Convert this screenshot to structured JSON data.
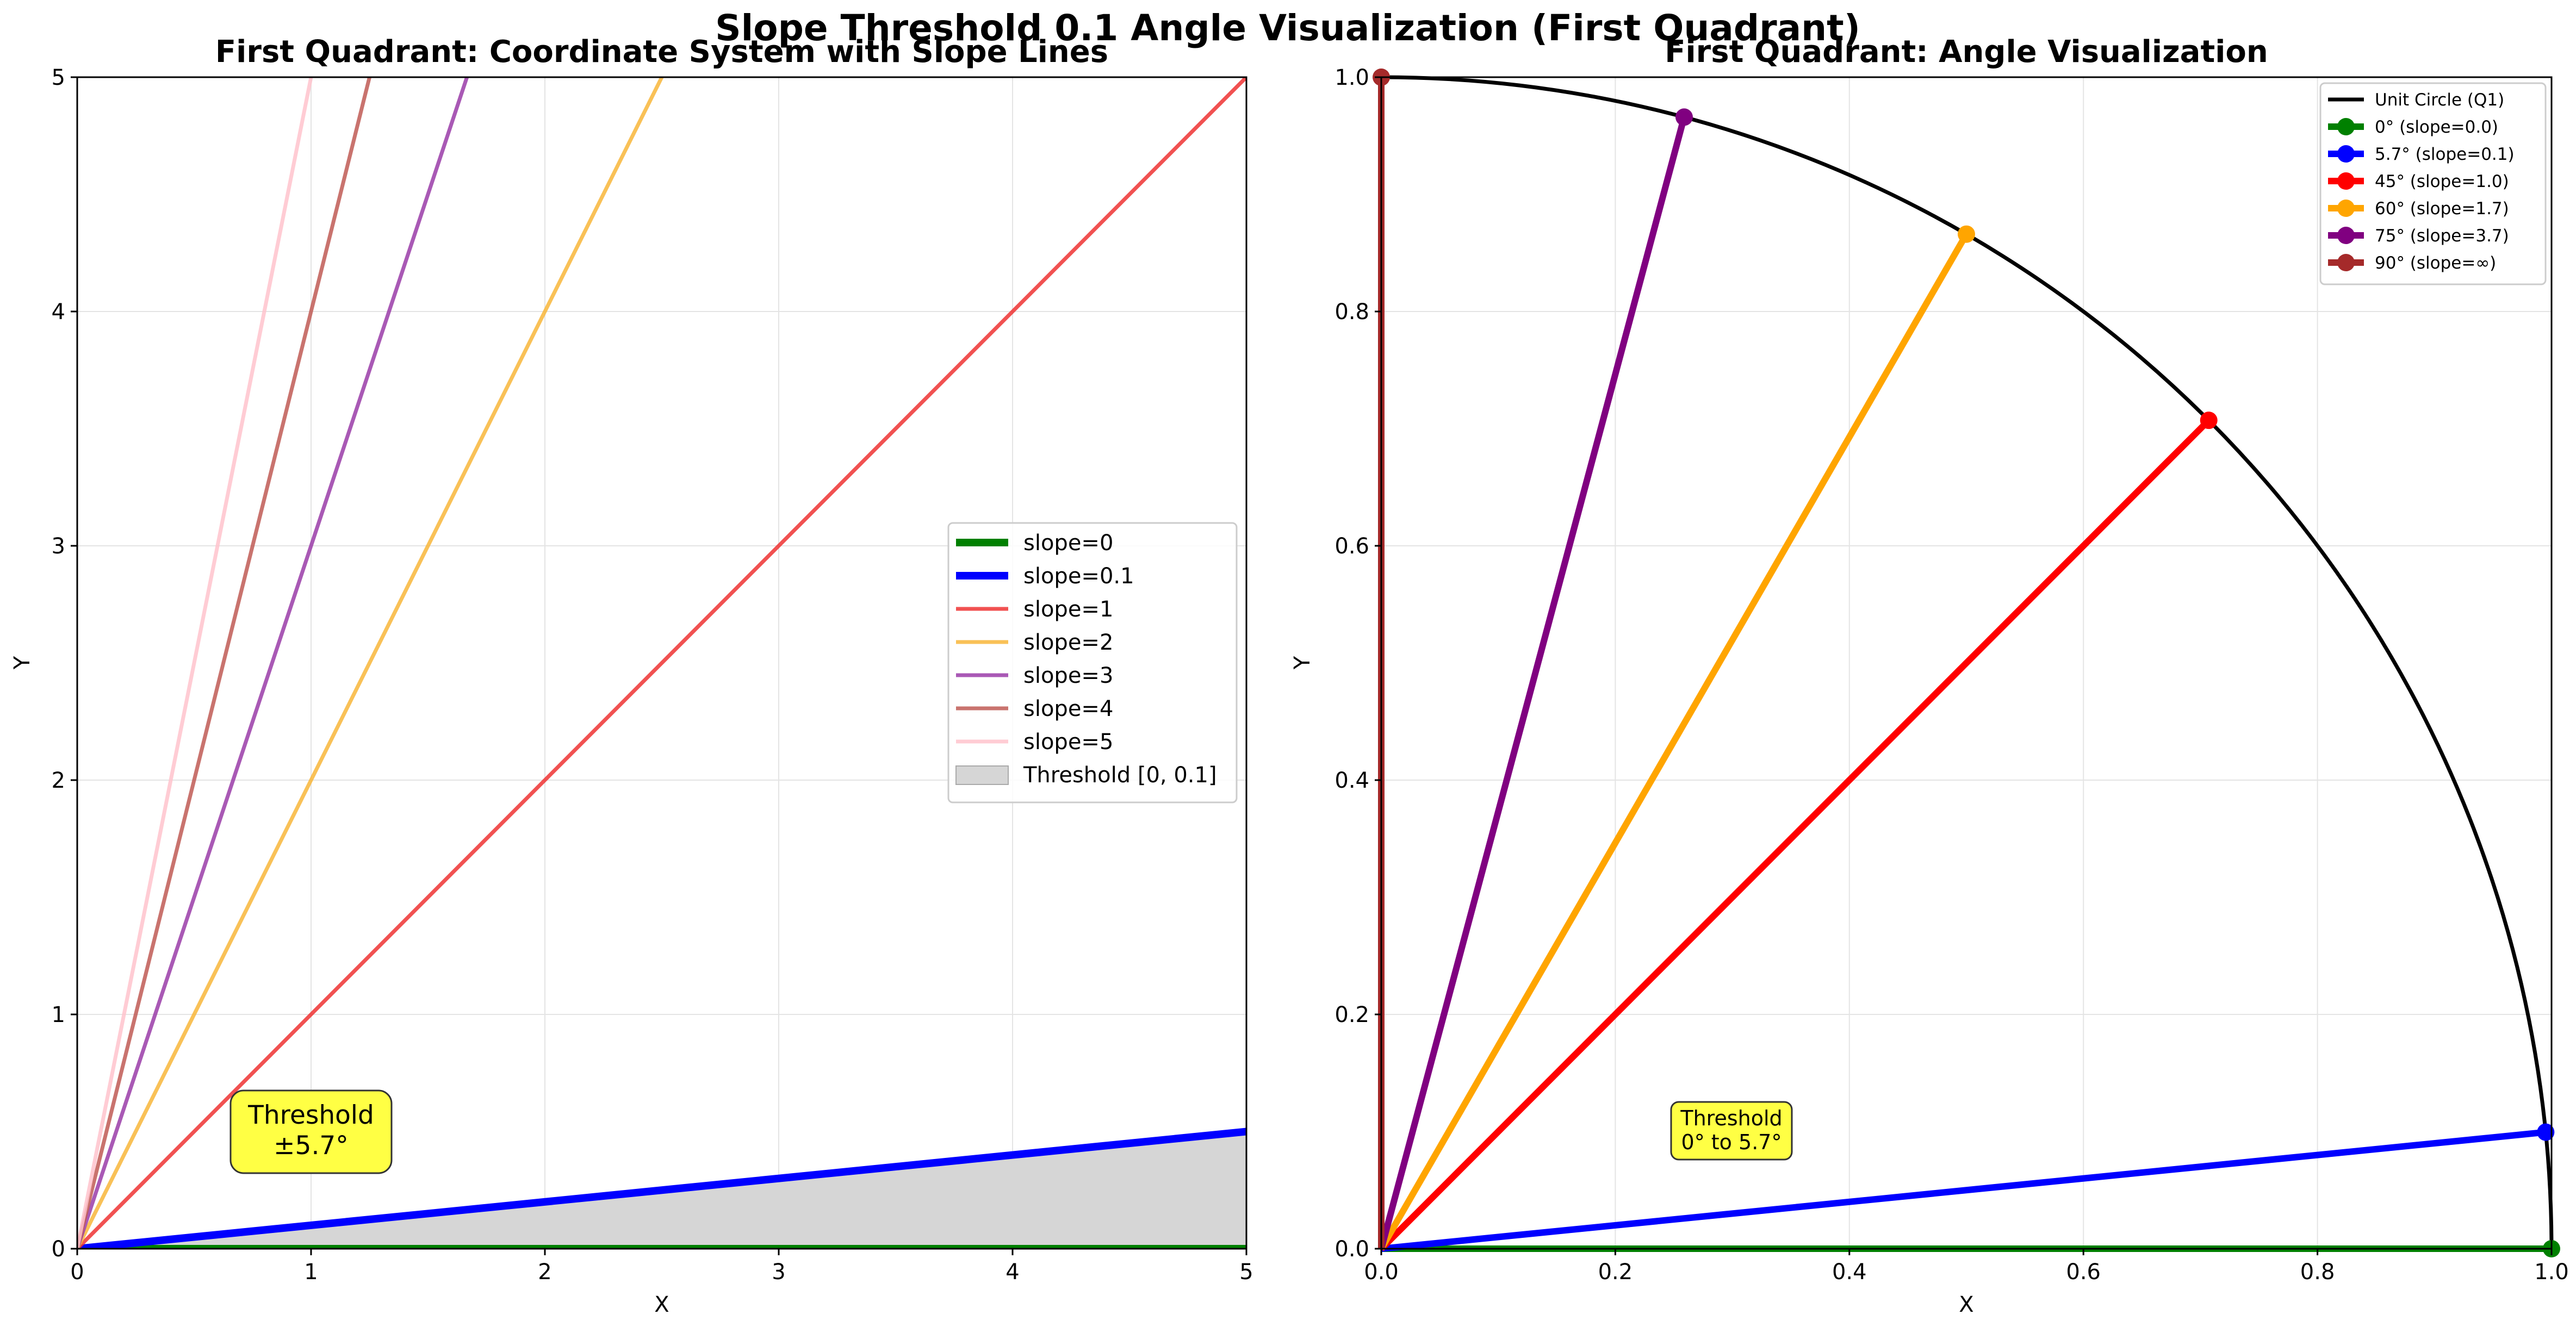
{
  "suptitle": "Slope Threshold 0.1 Angle Visualization (First Quadrant)",
  "chart_data": [
    {
      "type": "line",
      "title": "First Quadrant: Coordinate System with Slope Lines",
      "xlabel": "X",
      "ylabel": "Y",
      "xlim": [
        0,
        5
      ],
      "ylim": [
        0,
        5
      ],
      "xticks": [
        "0",
        "1",
        "2",
        "3",
        "4",
        "5"
      ],
      "yticks": [
        "0",
        "1",
        "2",
        "3",
        "4",
        "5"
      ],
      "grid": true,
      "legend_position": "center-right",
      "series": [
        {
          "name": "slope=0",
          "slope": 0,
          "color": "#008000"
        },
        {
          "name": "slope=0.1",
          "slope": 0.1,
          "color": "#0000ff"
        },
        {
          "name": "slope=1",
          "slope": 1,
          "color": "#ee3333"
        },
        {
          "name": "slope=2",
          "slope": 2,
          "color": "#f8b63a"
        },
        {
          "name": "slope=3",
          "slope": 3,
          "color": "#9a3ca8"
        },
        {
          "name": "slope=4",
          "slope": 4,
          "color": "#bf5a55"
        },
        {
          "name": "slope=5",
          "slope": 5,
          "color": "#ffc3cc"
        }
      ],
      "threshold_region": {
        "name": "Threshold [0, 0.1]",
        "slope_min": 0,
        "slope_max": 0.1,
        "color": "#d6d6d6"
      },
      "annotation": {
        "lines": [
          "Threshold",
          "±5.7°"
        ],
        "x": 1,
        "y": 0.5,
        "background": "#ffff44"
      }
    },
    {
      "type": "line",
      "title": "First Quadrant: Angle Visualization",
      "xlabel": "X",
      "ylabel": "Y",
      "xlim": [
        0,
        1
      ],
      "ylim": [
        0,
        1
      ],
      "xticks": [
        "0.0",
        "0.2",
        "0.4",
        "0.6",
        "0.8",
        "1.0"
      ],
      "yticks": [
        "0.0",
        "0.2",
        "0.4",
        "0.6",
        "0.8",
        "1.0"
      ],
      "grid": true,
      "legend_position": "top-right",
      "unit_circle": {
        "name": "Unit Circle (Q1)",
        "color": "#000000"
      },
      "series": [
        {
          "name": "0° (slope=0.0)",
          "angle_deg": 0,
          "color": "#008000"
        },
        {
          "name": "5.7° (slope=0.1)",
          "angle_deg": 5.71,
          "color": "#0000ff"
        },
        {
          "name": "45° (slope=1.0)",
          "angle_deg": 45,
          "color": "#ff0000"
        },
        {
          "name": "60° (slope=1.7)",
          "angle_deg": 60,
          "color": "#ffa500"
        },
        {
          "name": "75° (slope=3.7)",
          "angle_deg": 75,
          "color": "#800080"
        },
        {
          "name": "90° (slope=∞)",
          "angle_deg": 90,
          "color": "#a52a2a"
        }
      ],
      "annotation": {
        "lines": [
          "Threshold",
          "0° to 5.7°"
        ],
        "x": 0.3,
        "y": 0.1,
        "background": "#ffff44"
      }
    }
  ]
}
